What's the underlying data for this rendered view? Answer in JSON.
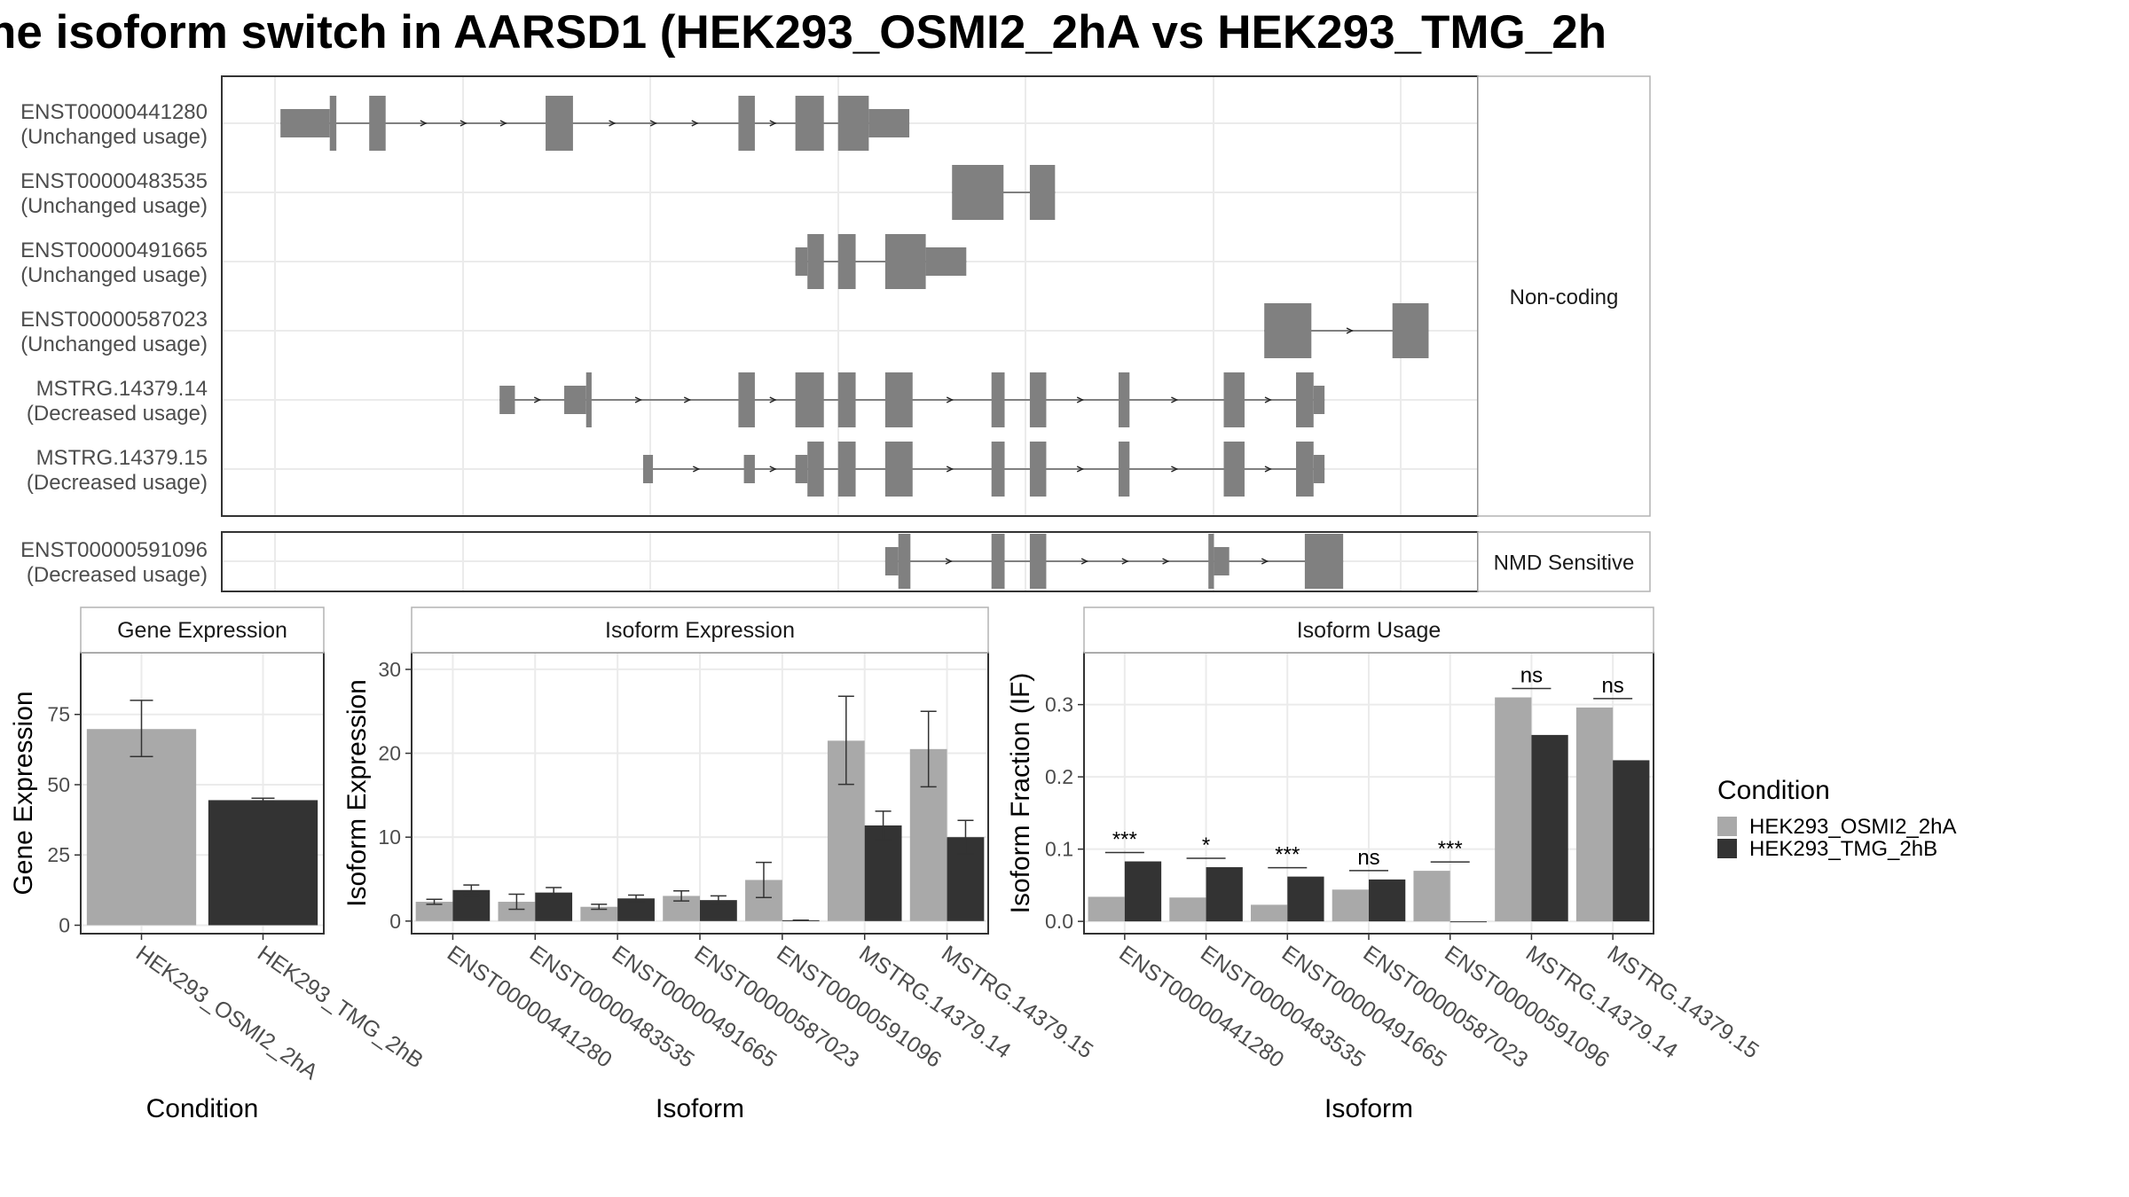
{
  "title": "ne isoform switch in AARSD1 (HEK293_OSMI2_2hA vs HEK293_TMG_2h",
  "colors": {
    "cond_a": "#a9a9a9",
    "cond_b": "#333333",
    "structure": "#808080",
    "grid": "#ebebeb",
    "panel_border": "#333333",
    "strip_border": "#b3b3b3"
  },
  "chart_data": [
    {
      "type": "gene-structure",
      "x_range": [
        0,
        1000
      ],
      "groups": [
        {
          "label": "Non-coding",
          "transcripts": [
            {
              "id": "ENST00000441280",
              "usage": "(Unchanged usage)",
              "exons": [
                [
                  5,
                  50,
                  1
                ],
                [
                  50,
                  56,
                  2
                ],
                [
                  86,
                  101,
                  2
                ],
                [
                  247,
                  272,
                  2
                ],
                [
                  423,
                  438,
                  2
                ],
                [
                  475,
                  501,
                  2
                ],
                [
                  514,
                  542,
                  2
                ],
                [
                  542,
                  579,
                  1
                ]
              ]
            },
            {
              "id": "ENST00000483535",
              "usage": "(Unchanged usage)",
              "exons": [
                [
                  618,
                  665,
                  2
                ],
                [
                  689,
                  712,
                  2
                ]
              ]
            },
            {
              "id": "ENST00000491665",
              "usage": "(Unchanged usage)",
              "exons": [
                [
                  475,
                  486,
                  1
                ],
                [
                  486,
                  501,
                  2
                ],
                [
                  514,
                  530,
                  2
                ],
                [
                  557,
                  594,
                  2
                ],
                [
                  594,
                  631,
                  1
                ]
              ]
            },
            {
              "id": "ENST00000587023",
              "usage": "(Unchanged usage)",
              "exons": [
                [
                  903,
                  946,
                  2
                ],
                [
                  1020,
                  1053,
                  2
                ]
              ]
            },
            {
              "id": "MSTRG.14379.14",
              "usage": "(Decreased usage)",
              "exons": [
                [
                  205,
                  219,
                  1
                ],
                [
                  264,
                  284,
                  1
                ],
                [
                  284,
                  289,
                  2
                ],
                [
                  423,
                  438,
                  2
                ],
                [
                  475,
                  501,
                  2
                ],
                [
                  514,
                  530,
                  2
                ],
                [
                  557,
                  582,
                  2
                ],
                [
                  654,
                  666,
                  2
                ],
                [
                  689,
                  704,
                  2
                ],
                [
                  770,
                  780,
                  2
                ],
                [
                  866,
                  885,
                  2
                ],
                [
                  932,
                  948,
                  2
                ],
                [
                  948,
                  958,
                  1
                ]
              ]
            },
            {
              "id": "MSTRG.14379.15",
              "usage": "(Decreased usage)",
              "exons": [
                [
                  336,
                  345,
                  1
                ],
                [
                  428,
                  438,
                  1
                ],
                [
                  475,
                  486,
                  1
                ],
                [
                  486,
                  501,
                  2
                ],
                [
                  514,
                  530,
                  2
                ],
                [
                  557,
                  582,
                  2
                ],
                [
                  654,
                  666,
                  2
                ],
                [
                  689,
                  704,
                  2
                ],
                [
                  770,
                  780,
                  2
                ],
                [
                  866,
                  885,
                  2
                ],
                [
                  932,
                  948,
                  2
                ],
                [
                  948,
                  958,
                  1
                ]
              ]
            }
          ]
        },
        {
          "label": "NMD Sensitive",
          "transcripts": [
            {
              "id": "ENST00000591096",
              "usage": "(Decreased usage)",
              "exons": [
                [
                  557,
                  569,
                  1
                ],
                [
                  569,
                  580,
                  2
                ],
                [
                  654,
                  666,
                  2
                ],
                [
                  689,
                  704,
                  2
                ],
                [
                  852,
                  857,
                  2
                ],
                [
                  857,
                  871,
                  1
                ],
                [
                  940,
                  975,
                  2
                ]
              ]
            }
          ]
        }
      ]
    },
    {
      "type": "bar",
      "strip": "Gene Expression",
      "xlabel": "Condition",
      "ylabel": "Gene Expression",
      "categories": [
        "HEK293_OSMI2_2hA",
        "HEK293_TMG_2hB"
      ],
      "values": [
        69.8,
        44.5
      ],
      "errors": [
        [
          60,
          80
        ],
        [
          43.8,
          45.2
        ]
      ],
      "ylim": [
        -3,
        97
      ],
      "yticks": [
        0,
        25,
        50,
        75
      ]
    },
    {
      "type": "bar",
      "strip": "Isoform Expression",
      "xlabel": "Isoform",
      "ylabel": "Isoform Expression",
      "categories": [
        "ENST00000441280",
        "ENST00000483535",
        "ENST00000491665",
        "ENST00000587023",
        "ENST00000591096",
        "MSTRG.14379.14",
        "MSTRG.14379.15"
      ],
      "series": [
        {
          "name": "HEK293_OSMI2_2hA",
          "values": [
            2.3,
            2.3,
            1.7,
            3.0,
            4.9,
            21.5,
            20.5
          ],
          "errors": [
            [
              2.0,
              2.6
            ],
            [
              1.4,
              3.2
            ],
            [
              1.4,
              2.0
            ],
            [
              2.4,
              3.6
            ],
            [
              2.8,
              7.0
            ],
            [
              16.3,
              26.8
            ],
            [
              16.0,
              25.0
            ]
          ]
        },
        {
          "name": "HEK293_TMG_2hB",
          "values": [
            3.7,
            3.4,
            2.7,
            2.5,
            0.1,
            11.4,
            10.0
          ],
          "errors": [
            [
              3.1,
              4.3
            ],
            [
              2.8,
              4.0
            ],
            [
              2.3,
              3.1
            ],
            [
              2.0,
              3.0
            ],
            [
              0.1,
              0.1
            ],
            [
              9.7,
              13.1
            ],
            [
              8.0,
              12.0
            ]
          ]
        }
      ],
      "ylim": [
        -1.5,
        32
      ],
      "yticks": [
        0,
        10,
        20,
        30
      ]
    },
    {
      "type": "bar",
      "strip": "Isoform Usage",
      "xlabel": "Isoform",
      "ylabel": "Isoform Fraction (IF)",
      "categories": [
        "ENST00000441280",
        "ENST00000483535",
        "ENST00000491665",
        "ENST00000587023",
        "ENST00000591096",
        "MSTRG.14379.14",
        "MSTRG.14379.15"
      ],
      "series": [
        {
          "name": "HEK293_OSMI2_2hA",
          "values": [
            0.034,
            0.033,
            0.023,
            0.044,
            0.07,
            0.31,
            0.296
          ]
        },
        {
          "name": "HEK293_TMG_2hB",
          "values": [
            0.083,
            0.075,
            0.062,
            0.058,
            0.0,
            0.258,
            0.223
          ]
        }
      ],
      "significance": [
        "***",
        "*",
        "***",
        "ns",
        "***",
        "ns",
        "ns"
      ],
      "ylim": [
        -0.017,
        0.372
      ],
      "yticks": [
        0.0,
        0.1,
        0.2,
        0.3
      ],
      "ytick_labels": [
        "0.0",
        "0.1",
        "0.2",
        "0.3"
      ]
    }
  ],
  "legend": {
    "title": "Condition",
    "items": [
      {
        "label": "HEK293_OSMI2_2hA",
        "color": "#a9a9a9"
      },
      {
        "label": "HEK293_TMG_2hB",
        "color": "#333333"
      }
    ],
    "placement": "right"
  }
}
